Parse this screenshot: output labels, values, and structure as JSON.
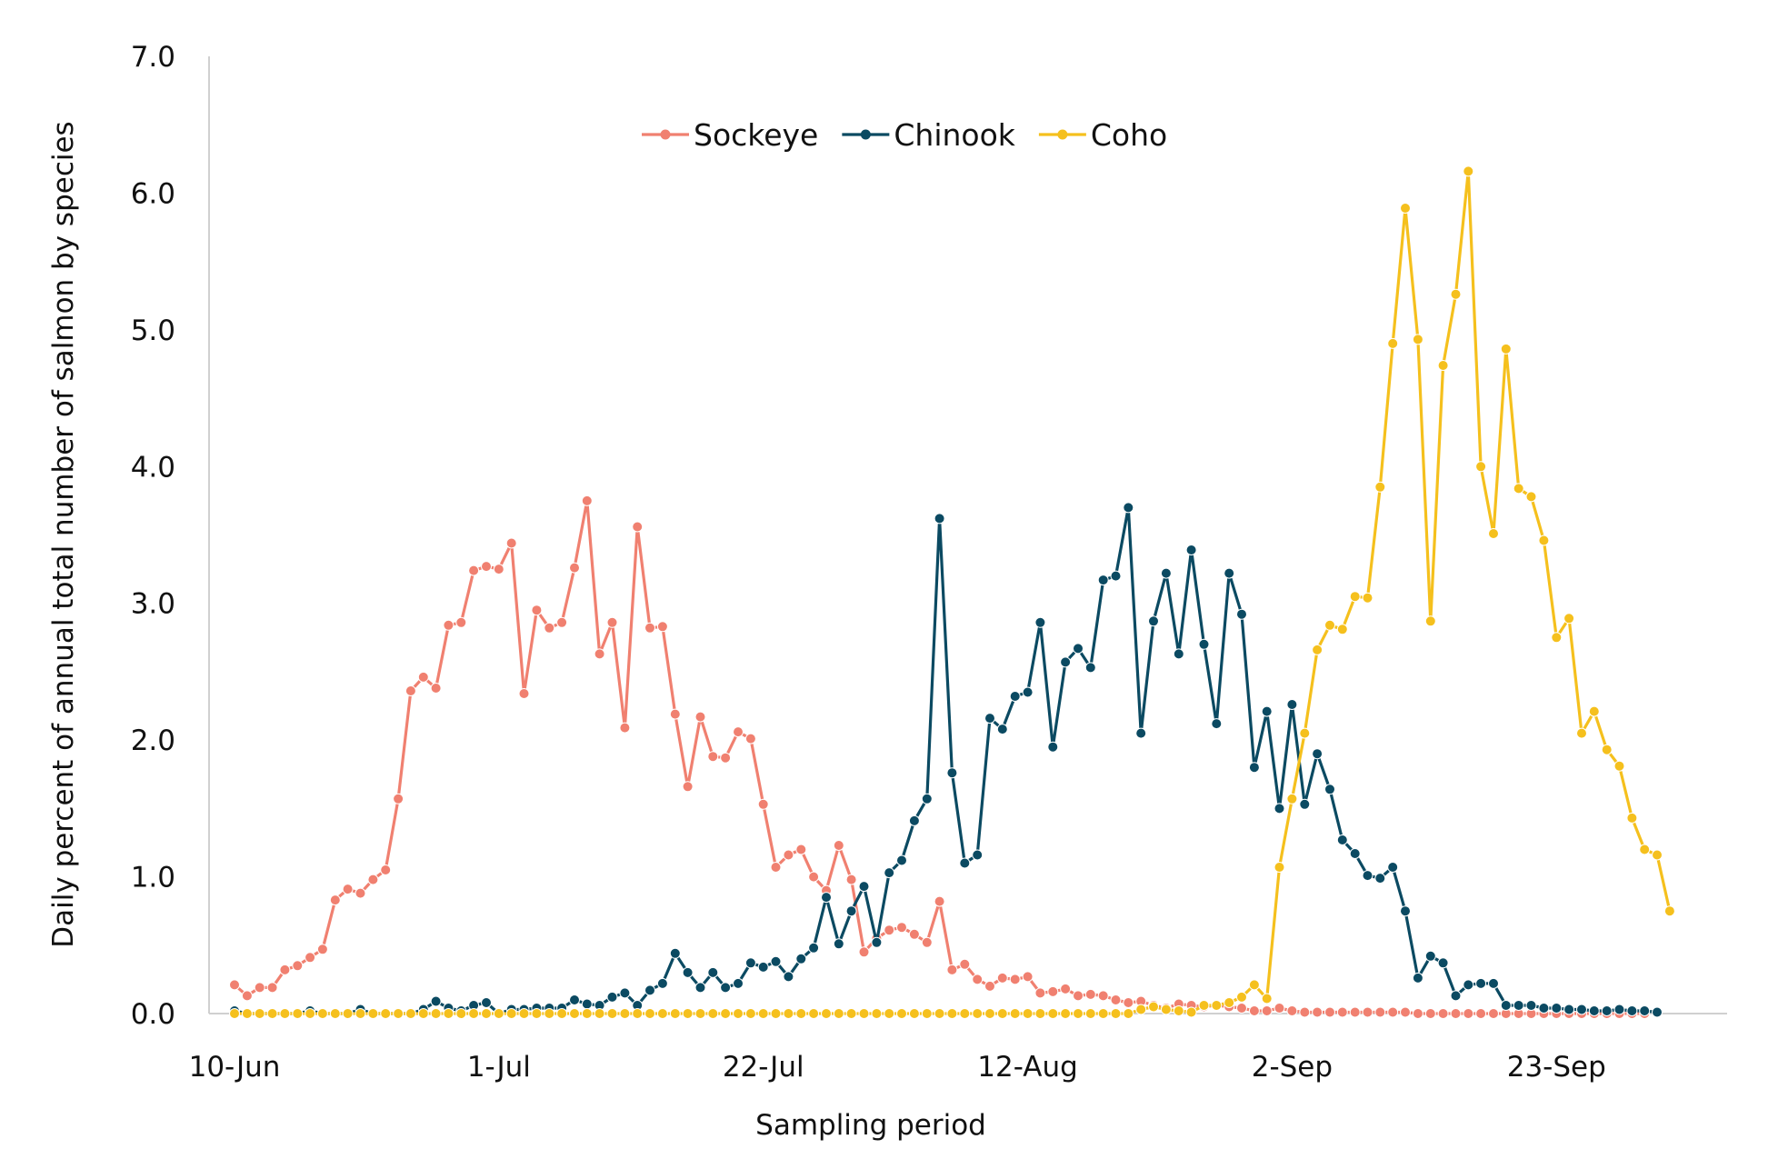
{
  "chart_data": {
    "type": "line",
    "xlabel": "Sampling period",
    "ylabel": "Daily percent of annual total number of salmon by species",
    "ylim": [
      0,
      7
    ],
    "yticks": [
      "0.0",
      "1.0",
      "2.0",
      "3.0",
      "4.0",
      "5.0",
      "6.0",
      "7.0"
    ],
    "xlim": [
      "2023-06-10",
      "2023-10-08"
    ],
    "xticks": [
      {
        "date": "2023-06-10",
        "label": "10-Jun"
      },
      {
        "date": "2023-07-01",
        "label": "1-Jul"
      },
      {
        "date": "2023-07-22",
        "label": "22-Jul"
      },
      {
        "date": "2023-08-12",
        "label": "12-Aug"
      },
      {
        "date": "2023-09-02",
        "label": "2-Sep"
      },
      {
        "date": "2023-09-23",
        "label": "23-Sep"
      }
    ],
    "grid": false,
    "legend_position": "top-center",
    "x_start": "2023-06-10",
    "series": [
      {
        "name": "Sockeye",
        "color": "#F08070",
        "values": [
          0.21,
          0.13,
          0.19,
          0.19,
          0.32,
          0.35,
          0.41,
          0.47,
          0.83,
          0.91,
          0.88,
          0.98,
          1.05,
          1.57,
          2.36,
          2.46,
          2.38,
          2.84,
          2.86,
          3.24,
          3.27,
          3.25,
          3.44,
          2.34,
          2.95,
          2.82,
          2.86,
          3.26,
          3.75,
          2.63,
          2.86,
          2.09,
          3.56,
          2.82,
          2.83,
          2.19,
          1.66,
          2.17,
          1.88,
          1.87,
          2.06,
          2.01,
          1.53,
          1.07,
          1.16,
          1.2,
          1.0,
          0.9,
          1.23,
          0.98,
          0.45,
          0.55,
          0.61,
          0.63,
          0.58,
          0.52,
          0.82,
          0.32,
          0.36,
          0.25,
          0.2,
          0.26,
          0.25,
          0.27,
          0.15,
          0.16,
          0.18,
          0.13,
          0.14,
          0.13,
          0.1,
          0.08,
          0.09,
          0.06,
          0.04,
          0.07,
          0.06,
          0.05,
          0.06,
          0.05,
          0.04,
          0.02,
          0.02,
          0.04,
          0.02,
          0.01,
          0.01,
          0.01,
          0.01,
          0.01,
          0.01,
          0.01,
          0.01,
          0.01,
          0.0,
          0.0,
          0.0,
          0.0,
          0.0,
          0.0,
          0.0,
          0.0,
          0.0,
          0.0,
          0.0,
          0.0,
          0.0,
          0.0,
          0.0,
          0.0,
          0.0,
          0.0,
          0.0
        ]
      },
      {
        "name": "Chinook",
        "color": "#0B4A62",
        "values": [
          0.02,
          0.0,
          0.0,
          0.0,
          0.0,
          0.0,
          0.02,
          0.0,
          0.0,
          0.0,
          0.03,
          0.0,
          0.0,
          0.0,
          0.0,
          0.03,
          0.09,
          0.04,
          0.02,
          0.06,
          0.08,
          0.0,
          0.03,
          0.03,
          0.04,
          0.04,
          0.04,
          0.1,
          0.07,
          0.06,
          0.12,
          0.15,
          0.06,
          0.17,
          0.22,
          0.44,
          0.3,
          0.19,
          0.3,
          0.19,
          0.22,
          0.37,
          0.34,
          0.38,
          0.27,
          0.4,
          0.48,
          0.85,
          0.51,
          0.75,
          0.93,
          0.52,
          1.03,
          1.12,
          1.41,
          1.57,
          3.62,
          1.76,
          1.1,
          1.16,
          2.16,
          2.08,
          2.32,
          2.35,
          2.86,
          1.95,
          2.57,
          2.67,
          2.53,
          3.17,
          3.2,
          3.7,
          2.05,
          2.87,
          3.22,
          2.63,
          3.39,
          2.7,
          2.12,
          3.22,
          2.92,
          1.8,
          2.21,
          1.5,
          2.26,
          1.53,
          1.9,
          1.64,
          1.27,
          1.17,
          1.01,
          0.99,
          1.07,
          0.75,
          0.26,
          0.42,
          0.37,
          0.13,
          0.21,
          0.22,
          0.22,
          0.06,
          0.06,
          0.06,
          0.04,
          0.04,
          0.03,
          0.03,
          0.02,
          0.02,
          0.03,
          0.02,
          0.02,
          0.01
        ]
      },
      {
        "name": "Coho",
        "color": "#F5C01D",
        "values": [
          0.0,
          0.0,
          0.0,
          0.0,
          0.0,
          0.0,
          0.0,
          0.0,
          0.0,
          0.0,
          0.0,
          0.0,
          0.0,
          0.0,
          0.0,
          0.0,
          0.0,
          0.0,
          0.0,
          0.0,
          0.0,
          0.0,
          0.0,
          0.0,
          0.0,
          0.0,
          0.0,
          0.0,
          0.0,
          0.0,
          0.0,
          0.0,
          0.0,
          0.0,
          0.0,
          0.0,
          0.0,
          0.0,
          0.0,
          0.0,
          0.0,
          0.0,
          0.0,
          0.0,
          0.0,
          0.0,
          0.0,
          0.0,
          0.0,
          0.0,
          0.0,
          0.0,
          0.0,
          0.0,
          0.0,
          0.0,
          0.0,
          0.0,
          0.0,
          0.0,
          0.0,
          0.0,
          0.0,
          0.0,
          0.0,
          0.0,
          0.0,
          0.0,
          0.0,
          0.0,
          0.0,
          0.0,
          0.03,
          0.05,
          0.03,
          0.02,
          0.01,
          0.06,
          0.06,
          0.08,
          0.12,
          0.21,
          0.11,
          1.07,
          1.57,
          2.05,
          2.66,
          2.84,
          2.81,
          3.05,
          3.04,
          3.85,
          4.9,
          5.89,
          4.93,
          2.87,
          4.74,
          5.26,
          6.16,
          4.0,
          3.51,
          4.86,
          3.84,
          3.78,
          3.46,
          2.75,
          2.89,
          2.05,
          2.21,
          1.93,
          1.81,
          1.43,
          1.2,
          1.16,
          0.75
        ]
      }
    ]
  }
}
